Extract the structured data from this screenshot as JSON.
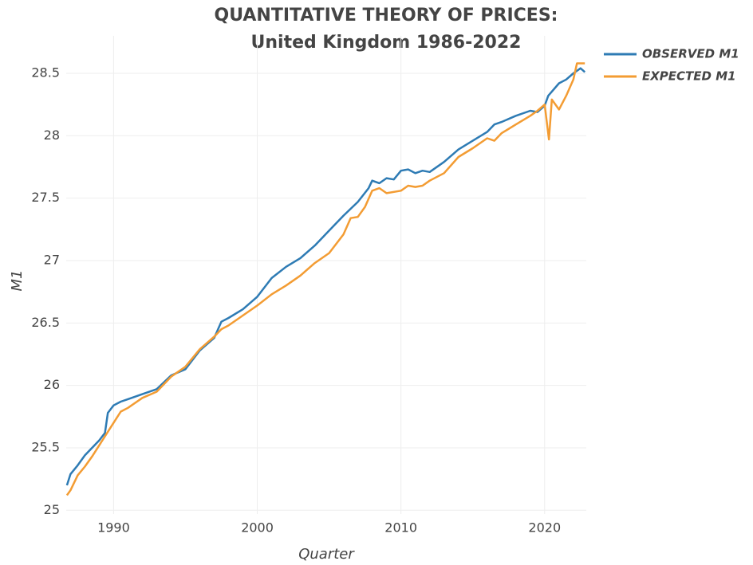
{
  "chart_data": {
    "type": "line",
    "title": [
      "QUANTITATIVE THEORY OF PRICES:",
      "United Kingdom 1986-2022"
    ],
    "x_label": "Quarter",
    "y_label": "M1",
    "xlim": [
      1986.7,
      2022.9
    ],
    "ylim": [
      24.97,
      28.8
    ],
    "xticks": [
      1990,
      2000,
      2010,
      2020
    ],
    "yticks": [
      25,
      25.5,
      26,
      26.5,
      27,
      27.5,
      28,
      28.5
    ],
    "grid": true,
    "legend": "top-right",
    "series": [
      {
        "name": "OBSERVED M1",
        "color": "#2e7bb4",
        "x": [
          1986.75,
          1987,
          1987.5,
          1988,
          1988.5,
          1989,
          1989.4,
          1989.6,
          1990,
          1990.5,
          1991,
          1992,
          1993,
          1994,
          1995,
          1996,
          1997,
          1997.5,
          1998,
          1999,
          2000,
          2001,
          2002,
          2003,
          2004,
          2005,
          2006,
          2007,
          2007.75,
          2008,
          2008.5,
          2009,
          2009.5,
          2010,
          2010.5,
          2011,
          2011.5,
          2012,
          2013,
          2014,
          2015,
          2016,
          2016.5,
          2017,
          2018,
          2019,
          2019.5,
          2020,
          2020.25,
          2021,
          2021.5,
          2022,
          2022.5,
          2022.8
        ],
        "values": [
          25.2,
          25.29,
          25.36,
          25.44,
          25.5,
          25.56,
          25.62,
          25.78,
          25.84,
          25.87,
          25.89,
          25.93,
          25.97,
          26.08,
          26.13,
          26.28,
          26.38,
          26.51,
          26.54,
          26.61,
          26.71,
          26.86,
          26.95,
          27.02,
          27.12,
          27.24,
          27.36,
          27.47,
          27.58,
          27.64,
          27.62,
          27.66,
          27.65,
          27.72,
          27.73,
          27.7,
          27.72,
          27.71,
          27.79,
          27.89,
          27.96,
          28.03,
          28.09,
          28.11,
          28.16,
          28.2,
          28.19,
          28.24,
          28.32,
          28.42,
          28.45,
          28.5,
          28.54,
          28.51
        ]
      },
      {
        "name": "EXPECTED M1",
        "color": "#f39c33",
        "x": [
          1986.75,
          1987,
          1987.5,
          1988,
          1988.5,
          1989,
          1990,
          1990.5,
          1991,
          1992,
          1993,
          1994,
          1995,
          1996,
          1997,
          1997.5,
          1998,
          1999,
          2000,
          2001,
          2002,
          2003,
          2004,
          2005,
          2006,
          2006.5,
          2007,
          2007.5,
          2008,
          2008.5,
          2009,
          2010,
          2010.5,
          2011,
          2011.5,
          2012,
          2013,
          2014,
          2015,
          2016,
          2016.5,
          2017,
          2018,
          2019,
          2019.5,
          2020,
          2020.3,
          2020.5,
          2021,
          2021.5,
          2022,
          2022.25,
          2022.8
        ],
        "values": [
          25.12,
          25.16,
          25.28,
          25.35,
          25.43,
          25.52,
          25.7,
          25.79,
          25.82,
          25.9,
          25.95,
          26.07,
          26.15,
          26.29,
          26.39,
          26.45,
          26.48,
          26.56,
          26.64,
          26.73,
          26.8,
          26.88,
          26.98,
          27.06,
          27.21,
          27.34,
          27.35,
          27.43,
          27.56,
          27.58,
          27.54,
          27.56,
          27.6,
          27.59,
          27.6,
          27.64,
          27.7,
          27.83,
          27.9,
          27.98,
          27.96,
          28.02,
          28.09,
          28.16,
          28.2,
          28.25,
          27.97,
          28.29,
          28.21,
          28.32,
          28.45,
          28.58,
          28.58
        ]
      }
    ]
  }
}
